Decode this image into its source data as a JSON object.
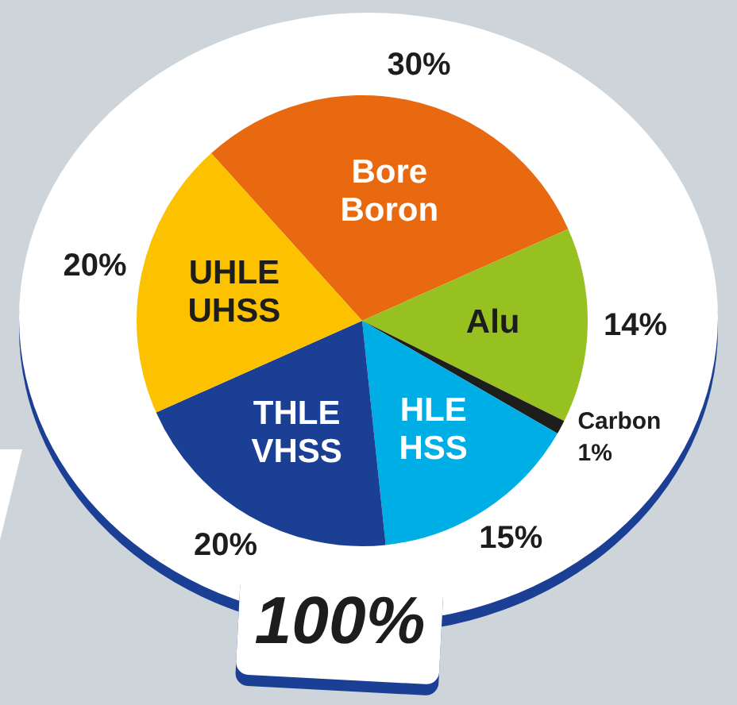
{
  "chart_data": {
    "type": "pie",
    "categories": [
      "Bore Boron",
      "Alu",
      "Carbon",
      "HLE HSS",
      "THLE VHSS",
      "UHLE UHSS"
    ],
    "values": [
      30,
      14,
      1,
      15,
      20,
      20
    ],
    "colors": [
      "#e8690f",
      "#97c121",
      "#1d1d1b",
      "#00aee6",
      "#1a3f94",
      "#fcc200"
    ],
    "value_labels": [
      "30%",
      "14%",
      "1%",
      "15%",
      "20%",
      "20%"
    ],
    "annotations": [
      "100%"
    ],
    "legend": false
  }
}
